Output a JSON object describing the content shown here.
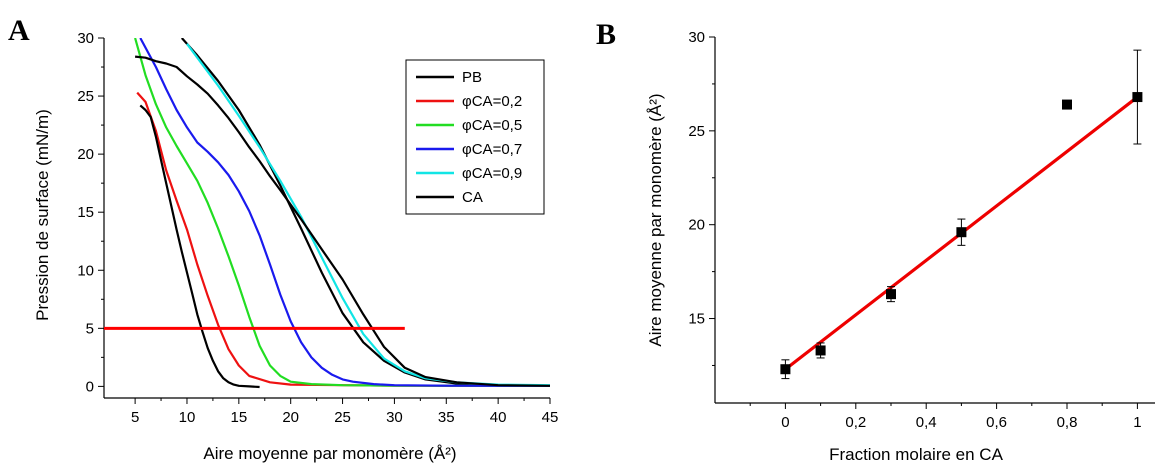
{
  "chart_data": [
    {
      "panel_label": "A",
      "type": "line",
      "xlabel": "Aire moyenne par monomère (Å²)",
      "ylabel": "Pression de surface (mN/m)",
      "xlim": [
        2,
        45
      ],
      "ylim": [
        -1,
        30
      ],
      "xticks": [
        5,
        10,
        15,
        20,
        25,
        30,
        35,
        40,
        45
      ],
      "yticks": [
        0,
        5,
        10,
        15,
        20,
        25,
        30
      ],
      "grid": false,
      "legend_position": "top-right",
      "series": [
        {
          "name": "PB",
          "color": "#000000",
          "legend": true,
          "x": [
            9.5,
            11,
            13,
            15,
            17,
            19,
            21,
            23,
            25,
            27,
            29,
            31,
            33,
            36,
            40,
            45
          ],
          "y": [
            30,
            28.5,
            26.3,
            23.8,
            20.8,
            17.3,
            13.6,
            9.8,
            6.3,
            3.8,
            2.2,
            1.2,
            0.6,
            0.25,
            0.1,
            0.05
          ]
        },
        {
          "name": "φCA=0,2",
          "color": "#ee1111",
          "legend": true,
          "x": [
            5.2,
            6,
            7,
            8,
            9,
            10,
            11,
            12,
            13,
            14,
            15,
            16,
            18,
            20,
            25,
            30,
            40,
            45
          ],
          "y": [
            25.3,
            24.5,
            22.0,
            18.6,
            16.0,
            13.5,
            10.5,
            7.8,
            5.3,
            3.2,
            1.8,
            0.9,
            0.35,
            0.15,
            0.1,
            0.07,
            0.05,
            0.05
          ]
        },
        {
          "name": "φCA=0,5",
          "color": "#22dd22",
          "legend": true,
          "x": [
            5,
            6,
            7,
            8,
            9,
            10,
            11,
            12,
            13,
            14,
            15,
            16,
            17,
            18,
            19,
            20,
            22,
            25,
            30,
            45
          ],
          "y": [
            30,
            26.8,
            24.3,
            22.3,
            20.7,
            19.2,
            17.7,
            15.8,
            13.6,
            11.2,
            8.7,
            6.0,
            3.5,
            1.8,
            0.9,
            0.4,
            0.2,
            0.1,
            0.07,
            0.05
          ]
        },
        {
          "name": "φCA=0,7",
          "color": "#1a1aee",
          "legend": true,
          "x": [
            5.5,
            7,
            8,
            9,
            10,
            11,
            12,
            13,
            14,
            15,
            16,
            17,
            18,
            19,
            20,
            21,
            22,
            23,
            24,
            25,
            26,
            28,
            30,
            35,
            40,
            45
          ],
          "y": [
            30,
            27.5,
            25.6,
            23.8,
            22.3,
            21.0,
            20.2,
            19.3,
            18.2,
            16.8,
            15.1,
            13.0,
            10.5,
            7.9,
            5.6,
            3.8,
            2.5,
            1.6,
            1.0,
            0.6,
            0.4,
            0.2,
            0.1,
            0.06,
            0.05,
            0.05
          ]
        },
        {
          "name": "φCA=0,9",
          "color": "#11e5e5",
          "legend": true,
          "x": [
            10,
            11,
            13,
            15,
            17,
            19,
            21,
            23,
            25,
            27,
            29,
            31,
            33,
            36,
            40,
            45
          ],
          "y": [
            29.5,
            28.3,
            25.9,
            23.3,
            20.6,
            17.7,
            14.6,
            11.1,
            7.6,
            4.5,
            2.4,
            1.3,
            0.7,
            0.35,
            0.15,
            0.1
          ]
        },
        {
          "name": "PB",
          "color": "#000000",
          "legend": false,
          "x": [
            5,
            6,
            7,
            8,
            9,
            10,
            11,
            12,
            13,
            14,
            15,
            16,
            17,
            18,
            19,
            21,
            23,
            25,
            27,
            29,
            31,
            33,
            36,
            40,
            45
          ],
          "y": [
            28.4,
            28.3,
            28.0,
            27.8,
            27.5,
            26.7,
            26.0,
            25.2,
            24.2,
            23.1,
            21.9,
            20.6,
            19.4,
            18.1,
            16.9,
            14.4,
            11.8,
            9.2,
            6.2,
            3.4,
            1.6,
            0.8,
            0.35,
            0.1,
            0.05
          ]
        },
        {
          "name": "CA",
          "color": "#000000",
          "legend": true,
          "x": [
            5.5,
            6,
            6.5,
            7,
            7.5,
            8,
            8.5,
            9,
            9.5,
            10,
            10.5,
            11,
            11.5,
            12,
            12.5,
            13,
            13.5,
            14,
            14.5,
            15,
            16,
            17
          ],
          "y": [
            24.2,
            23.8,
            23.2,
            21.5,
            19.5,
            17.5,
            15.5,
            13.5,
            11.6,
            9.8,
            8.0,
            6.2,
            4.7,
            3.3,
            2.2,
            1.3,
            0.7,
            0.35,
            0.15,
            0.05,
            0.0,
            -0.05
          ]
        }
      ],
      "hline": {
        "y": 5,
        "x": [
          2,
          31
        ],
        "color": "#ff0000"
      }
    },
    {
      "panel_label": "B",
      "type": "scatter",
      "xlabel": "Fraction molaire en CA",
      "ylabel": "Aire moyenne par monomère (Å²)",
      "xlim": [
        -0.2,
        1.05
      ],
      "ylim": [
        10.5,
        30
      ],
      "xticks": [
        0,
        0.2,
        0.4,
        0.6,
        0.8,
        1
      ],
      "xticklabels": [
        "0",
        "0,2",
        "0,4",
        "0,6",
        "0,8",
        "1"
      ],
      "yticks": [
        15,
        20,
        25,
        30
      ],
      "grid": false,
      "points": {
        "x": [
          0,
          0.1,
          0.3,
          0.5,
          0.8,
          1
        ],
        "y": [
          12.3,
          13.3,
          16.3,
          19.6,
          26.4,
          26.8
        ],
        "err": [
          0.5,
          0.4,
          0.4,
          0.7,
          0.2,
          2.5
        ],
        "color": "#000000"
      },
      "fit": {
        "x": [
          0,
          1
        ],
        "y": [
          12.3,
          26.8
        ],
        "color": "#ee0000"
      }
    }
  ]
}
